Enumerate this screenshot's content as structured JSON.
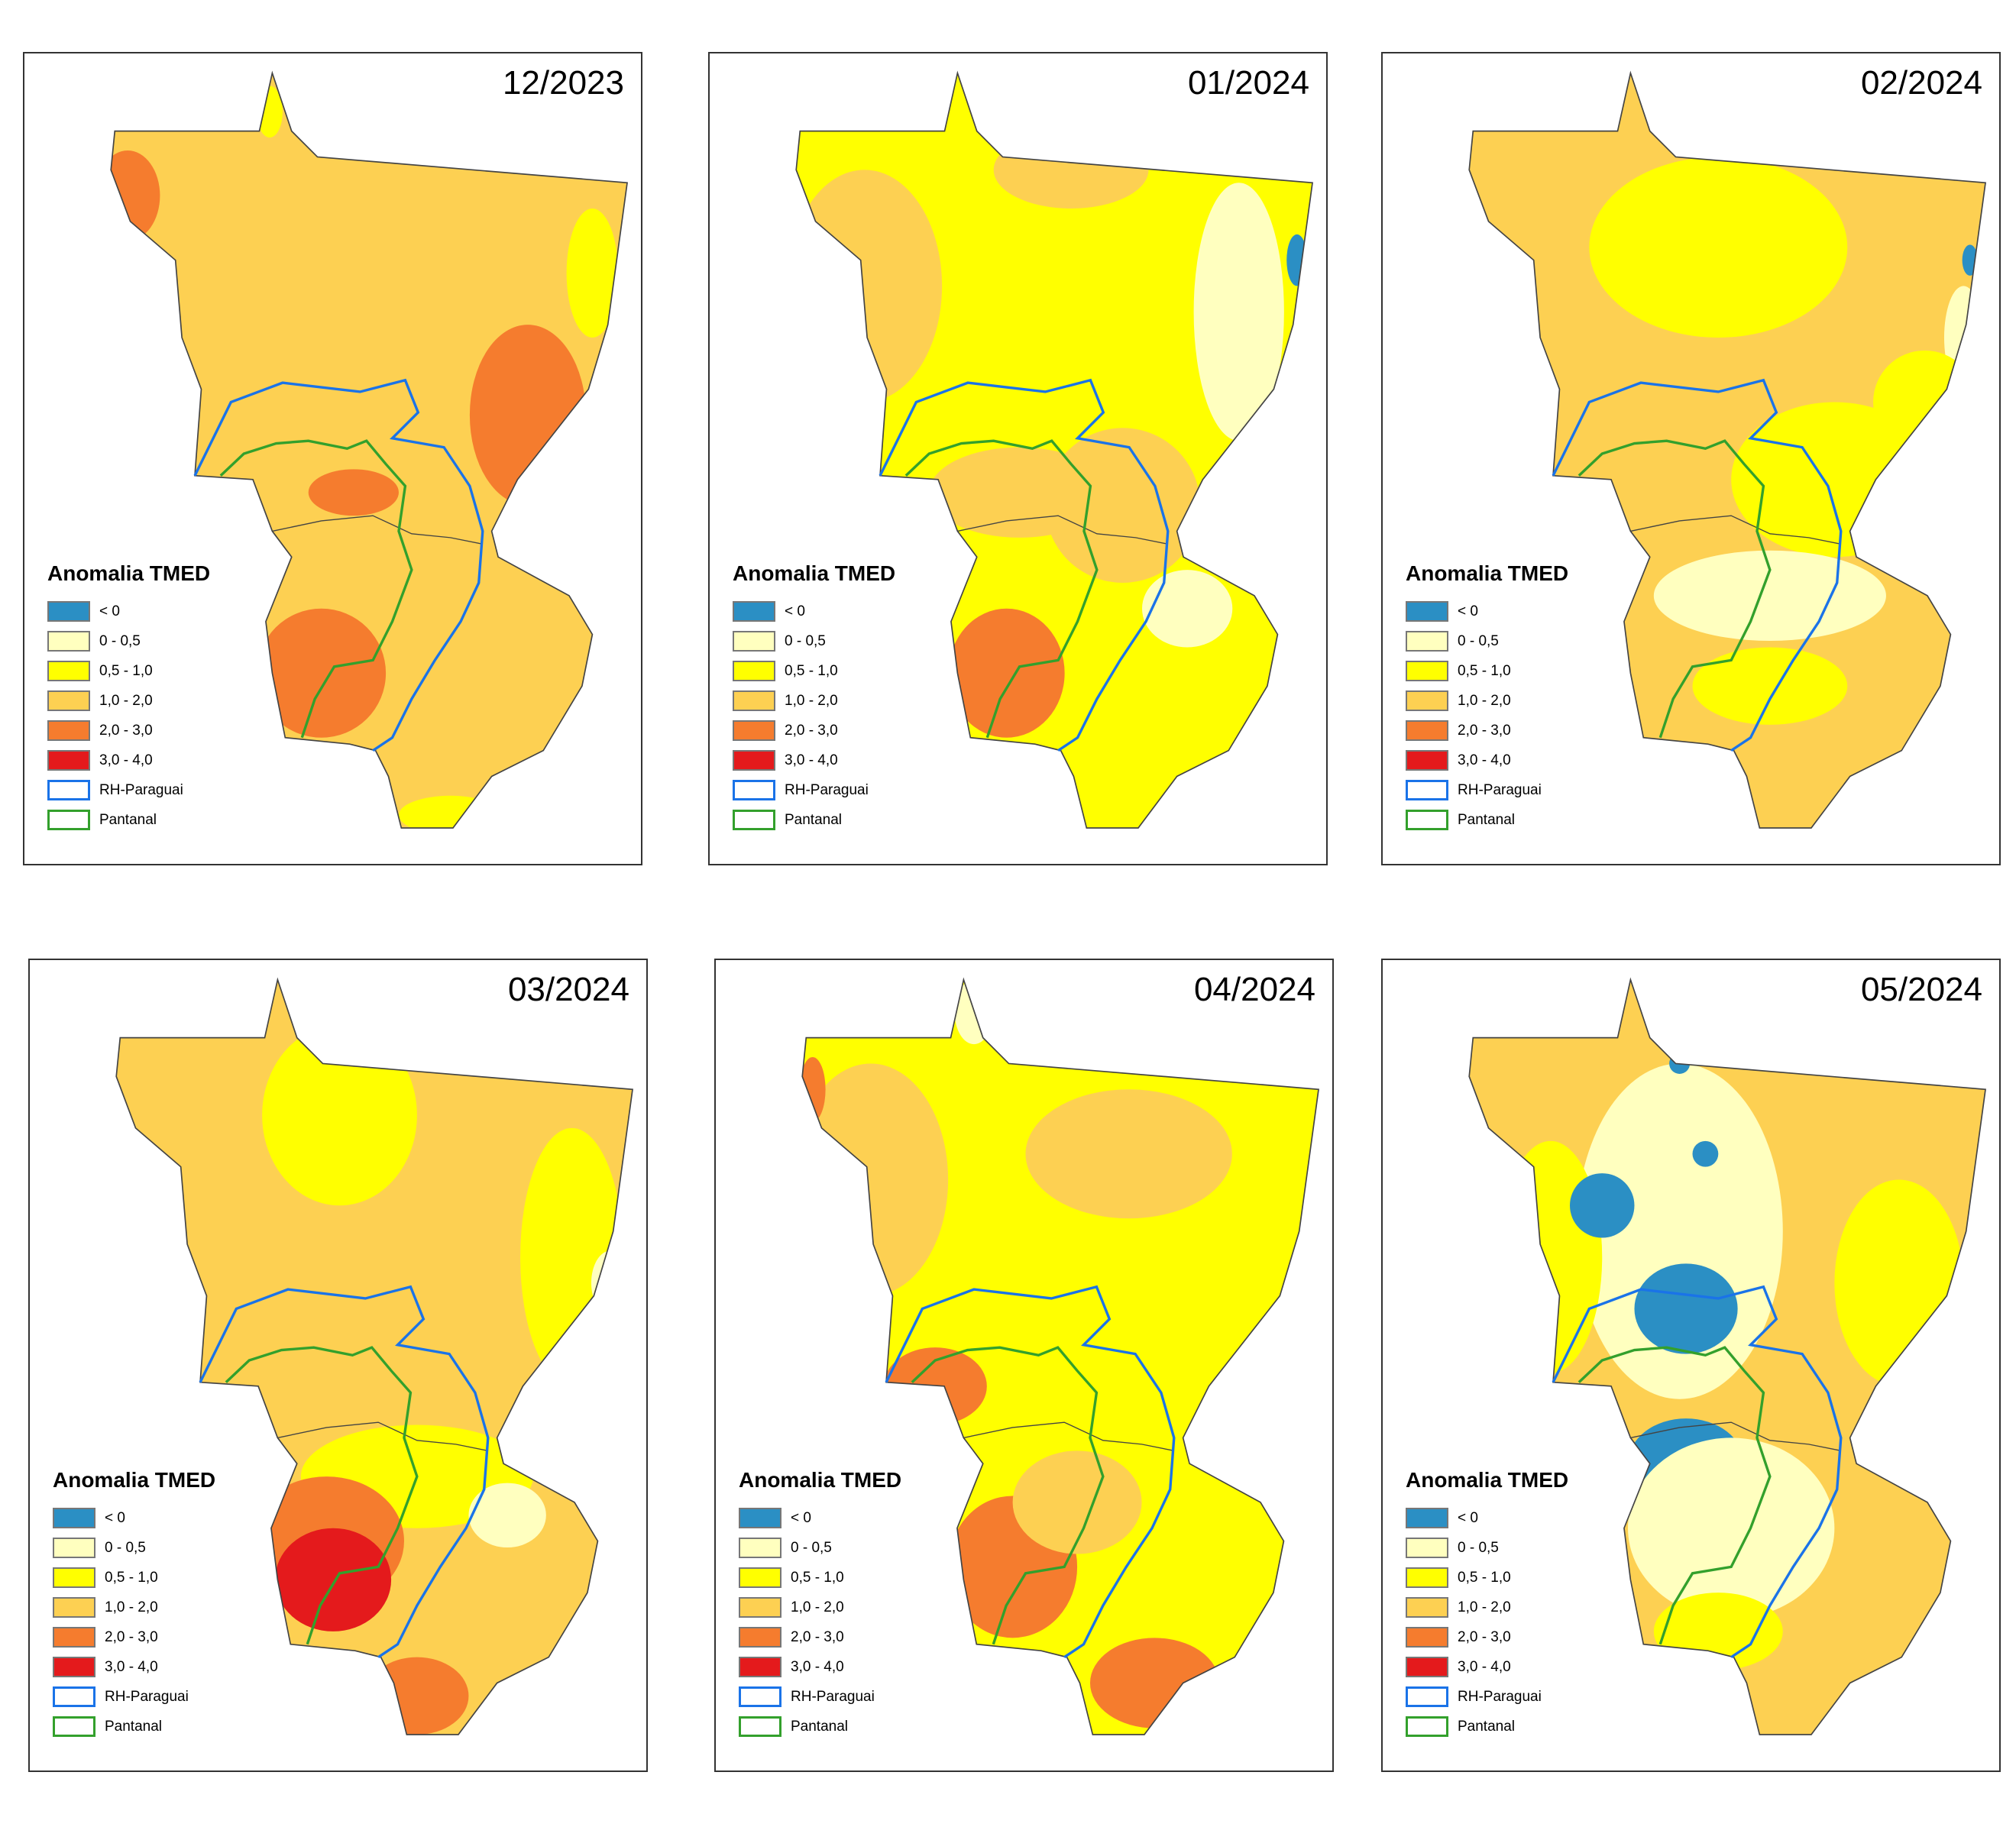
{
  "panels": [
    {
      "title": "12/2023"
    },
    {
      "title": "01/2024"
    },
    {
      "title": "02/2024"
    },
    {
      "title": "03/2024"
    },
    {
      "title": "04/2024"
    },
    {
      "title": "05/2024"
    }
  ],
  "legend": {
    "title": "Anomalia TMED",
    "items": [
      {
        "label": "< 0",
        "color": "#2b8fc4",
        "border": "#777"
      },
      {
        "label": "0 - 0,5",
        "color": "#ffffbf",
        "border": "#777"
      },
      {
        "label": "0,5 - 1,0",
        "color": "#ffff00",
        "border": "#777"
      },
      {
        "label": "1,0 - 2,0",
        "color": "#fdd052",
        "border": "#777"
      },
      {
        "label": "2,0 - 3,0",
        "color": "#f57c2e",
        "border": "#777"
      },
      {
        "label": "3,0 - 4,0",
        "color": "#e41a1c",
        "border": "#777"
      },
      {
        "label": "RH-Paraguai",
        "color": "#ffffff",
        "border": "#1a73e8"
      },
      {
        "label": "Pantanal",
        "color": "#ffffff",
        "border": "#33a02c"
      }
    ]
  }
}
